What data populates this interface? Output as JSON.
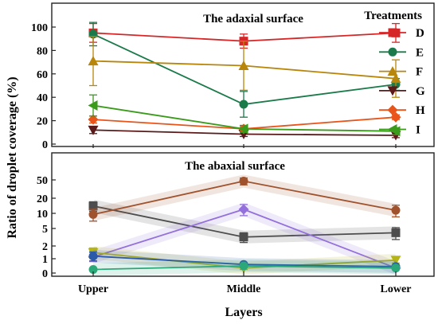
{
  "chart_data": {
    "ylabel": "Ratio of droplet coverage (%)",
    "xlabel": "Layers",
    "legend": {
      "title": "Treatments",
      "placement": "top-right"
    },
    "panels": [
      {
        "type": "line",
        "title": "The adaxial surface",
        "x": [
          "Upper",
          "Middle",
          "Lower"
        ],
        "ylim": [
          0,
          110
        ],
        "yticks": [
          0,
          20,
          40,
          60,
          80,
          100
        ],
        "series": [
          {
            "name": "D",
            "color": "#d62728",
            "marker": "square",
            "values": [
              95,
              88,
              95
            ],
            "errors": [
              8,
              6,
              8
            ]
          },
          {
            "name": "E",
            "color": "#1a7a4a",
            "marker": "circle",
            "values": [
              94,
              34,
              51
            ],
            "errors": [
              10,
              11,
              5
            ]
          },
          {
            "name": "F",
            "color": "#b8860b",
            "marker": "triangle-up",
            "values": [
              71,
              67,
              56
            ],
            "errors": [
              21,
              21,
              16
            ]
          },
          {
            "name": "G",
            "color": "#5a1a1a",
            "marker": "triangle-down",
            "values": [
              12,
              8.5,
              7.5
            ],
            "errors": [
              3,
              2,
              2
            ]
          },
          {
            "name": "H",
            "color": "#e8541a",
            "marker": "diamond",
            "values": [
              21,
              13,
              23
            ],
            "errors": [
              3,
              2,
              2
            ]
          },
          {
            "name": "I",
            "color": "#3a9a1a",
            "marker": "triangle-left",
            "values": [
              33,
              13,
              11
            ],
            "errors": [
              9,
              3,
              3
            ]
          }
        ]
      },
      {
        "type": "line",
        "title": "The abaxial surface",
        "x": [
          "Upper",
          "Middle",
          "Lower"
        ],
        "yscale": "symlog",
        "yticks": [
          0,
          1,
          2,
          5,
          10,
          20,
          50
        ],
        "series": [
          {
            "color": "#4d4d4d",
            "marker": "square",
            "values": [
              14,
              3.2,
              4.0
            ],
            "errors": [
              3,
              0.8,
              1.2
            ]
          },
          {
            "color": "#a0522d",
            "marker": "circle",
            "values": [
              9.5,
              47,
              11.5
            ],
            "errors": [
              2.5,
              8,
              3
            ]
          },
          {
            "color": "#9370db",
            "marker": "diamond",
            "values": [
              1.1,
              12,
              0.35
            ],
            "errors": [
              0.3,
              3,
              0.1
            ]
          },
          {
            "color": "#b5b51a",
            "marker": "triangle-down",
            "values": [
              1.4,
              0.35,
              0.9
            ],
            "errors": [
              0.4,
              0.1,
              0.2
            ]
          },
          {
            "color": "#2a5aa8",
            "marker": "circle",
            "values": [
              1.15,
              0.6,
              0.45
            ],
            "errors": [
              0.3,
              0.1,
              0.1
            ]
          },
          {
            "color": "#2aa87a",
            "marker": "circle",
            "values": [
              0.25,
              0.5,
              0.35
            ],
            "errors": [
              0.05,
              0.05,
              0.05
            ]
          }
        ]
      }
    ]
  }
}
